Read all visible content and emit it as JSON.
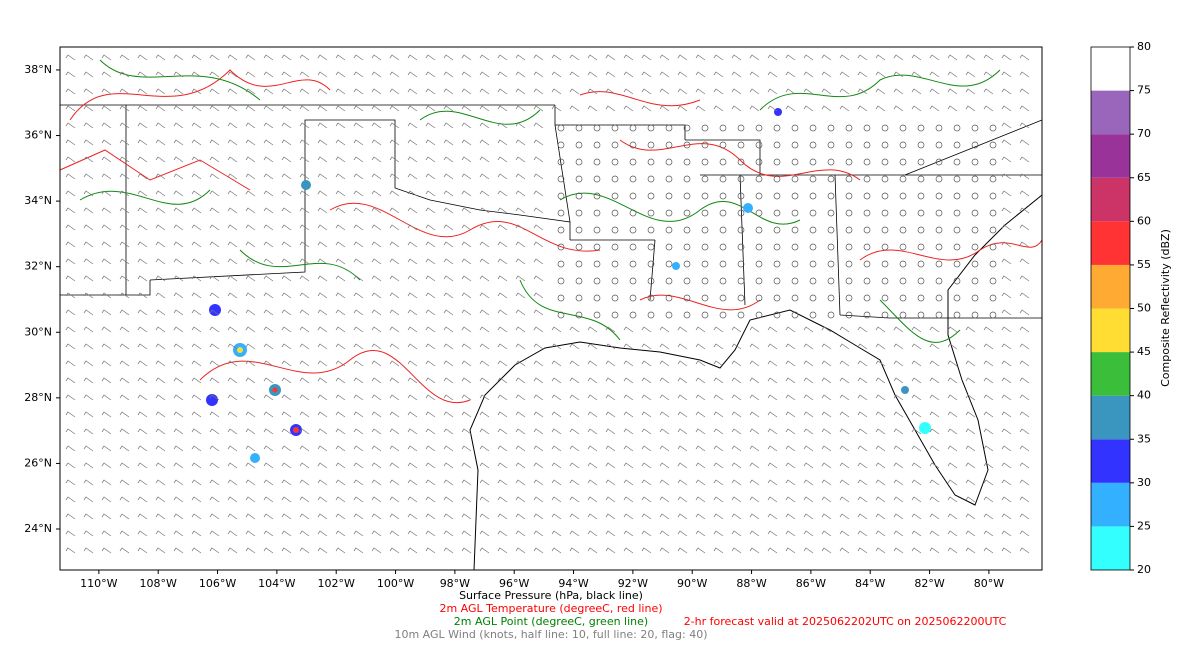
{
  "chart_data": {
    "type": "map",
    "xlim": [
      -111.31,
      -78.21
    ],
    "ylim": [
      22.75,
      38.7
    ],
    "xticks": [
      {
        "value": -110,
        "label": "110°W"
      },
      {
        "value": -108,
        "label": "108°W"
      },
      {
        "value": -106,
        "label": "106°W"
      },
      {
        "value": -104,
        "label": "104°W"
      },
      {
        "value": -102,
        "label": "102°W"
      },
      {
        "value": -100,
        "label": "100°W"
      },
      {
        "value": -98,
        "label": "98°W"
      },
      {
        "value": -96,
        "label": "96°W"
      },
      {
        "value": -94,
        "label": "94°W"
      },
      {
        "value": -92,
        "label": "92°W"
      },
      {
        "value": -90,
        "label": "90°W"
      },
      {
        "value": -88,
        "label": "88°W"
      },
      {
        "value": -86,
        "label": "86°W"
      },
      {
        "value": -84,
        "label": "84°W"
      },
      {
        "value": -82,
        "label": "82°W"
      },
      {
        "value": -80,
        "label": "80°W"
      }
    ],
    "yticks": [
      {
        "value": 24,
        "label": "24°N"
      },
      {
        "value": 26,
        "label": "26°N"
      },
      {
        "value": 28,
        "label": "28°N"
      },
      {
        "value": 30,
        "label": "30°N"
      },
      {
        "value": 32,
        "label": "32°N"
      },
      {
        "value": 34,
        "label": "34°N"
      },
      {
        "value": 36,
        "label": "36°N"
      },
      {
        "value": 38,
        "label": "38°N"
      }
    ],
    "colorbar": {
      "label": "Composite Reflectivity (dBZ)",
      "lim": [
        20,
        80
      ],
      "ticks": [
        20,
        25,
        30,
        35,
        40,
        45,
        50,
        55,
        60,
        65,
        70,
        75,
        80
      ],
      "bins": [
        20,
        25,
        30,
        35,
        40,
        45,
        50,
        55,
        60,
        65,
        70,
        75,
        80
      ],
      "colors": [
        "#33ffff",
        "#33b0ff",
        "#3333ff",
        "#3a96bf",
        "#3bbf3b",
        "#ffdd33",
        "#ffaa33",
        "#ff3333",
        "#cc3366",
        "#993399",
        "#9966bb",
        "#ffffff"
      ]
    },
    "captions": [
      {
        "text": "Surface Pressure (hPa, black line)",
        "color": "#000000"
      },
      {
        "text": "2m AGL Temperature (degreeC, red line)",
        "color": "#ff0000"
      },
      {
        "text": "2m AGL Point (degreeC, green line)",
        "color": "#008000"
      },
      {
        "text": "10m AGL Wind (knots, half line: 10, full line: 20, flag: 40)",
        "color": "#808080"
      }
    ],
    "forecast_note": {
      "text": "2-hr forecast valid at 2025062202UTC on 2025062200UTC",
      "color": "#ff0000"
    }
  }
}
